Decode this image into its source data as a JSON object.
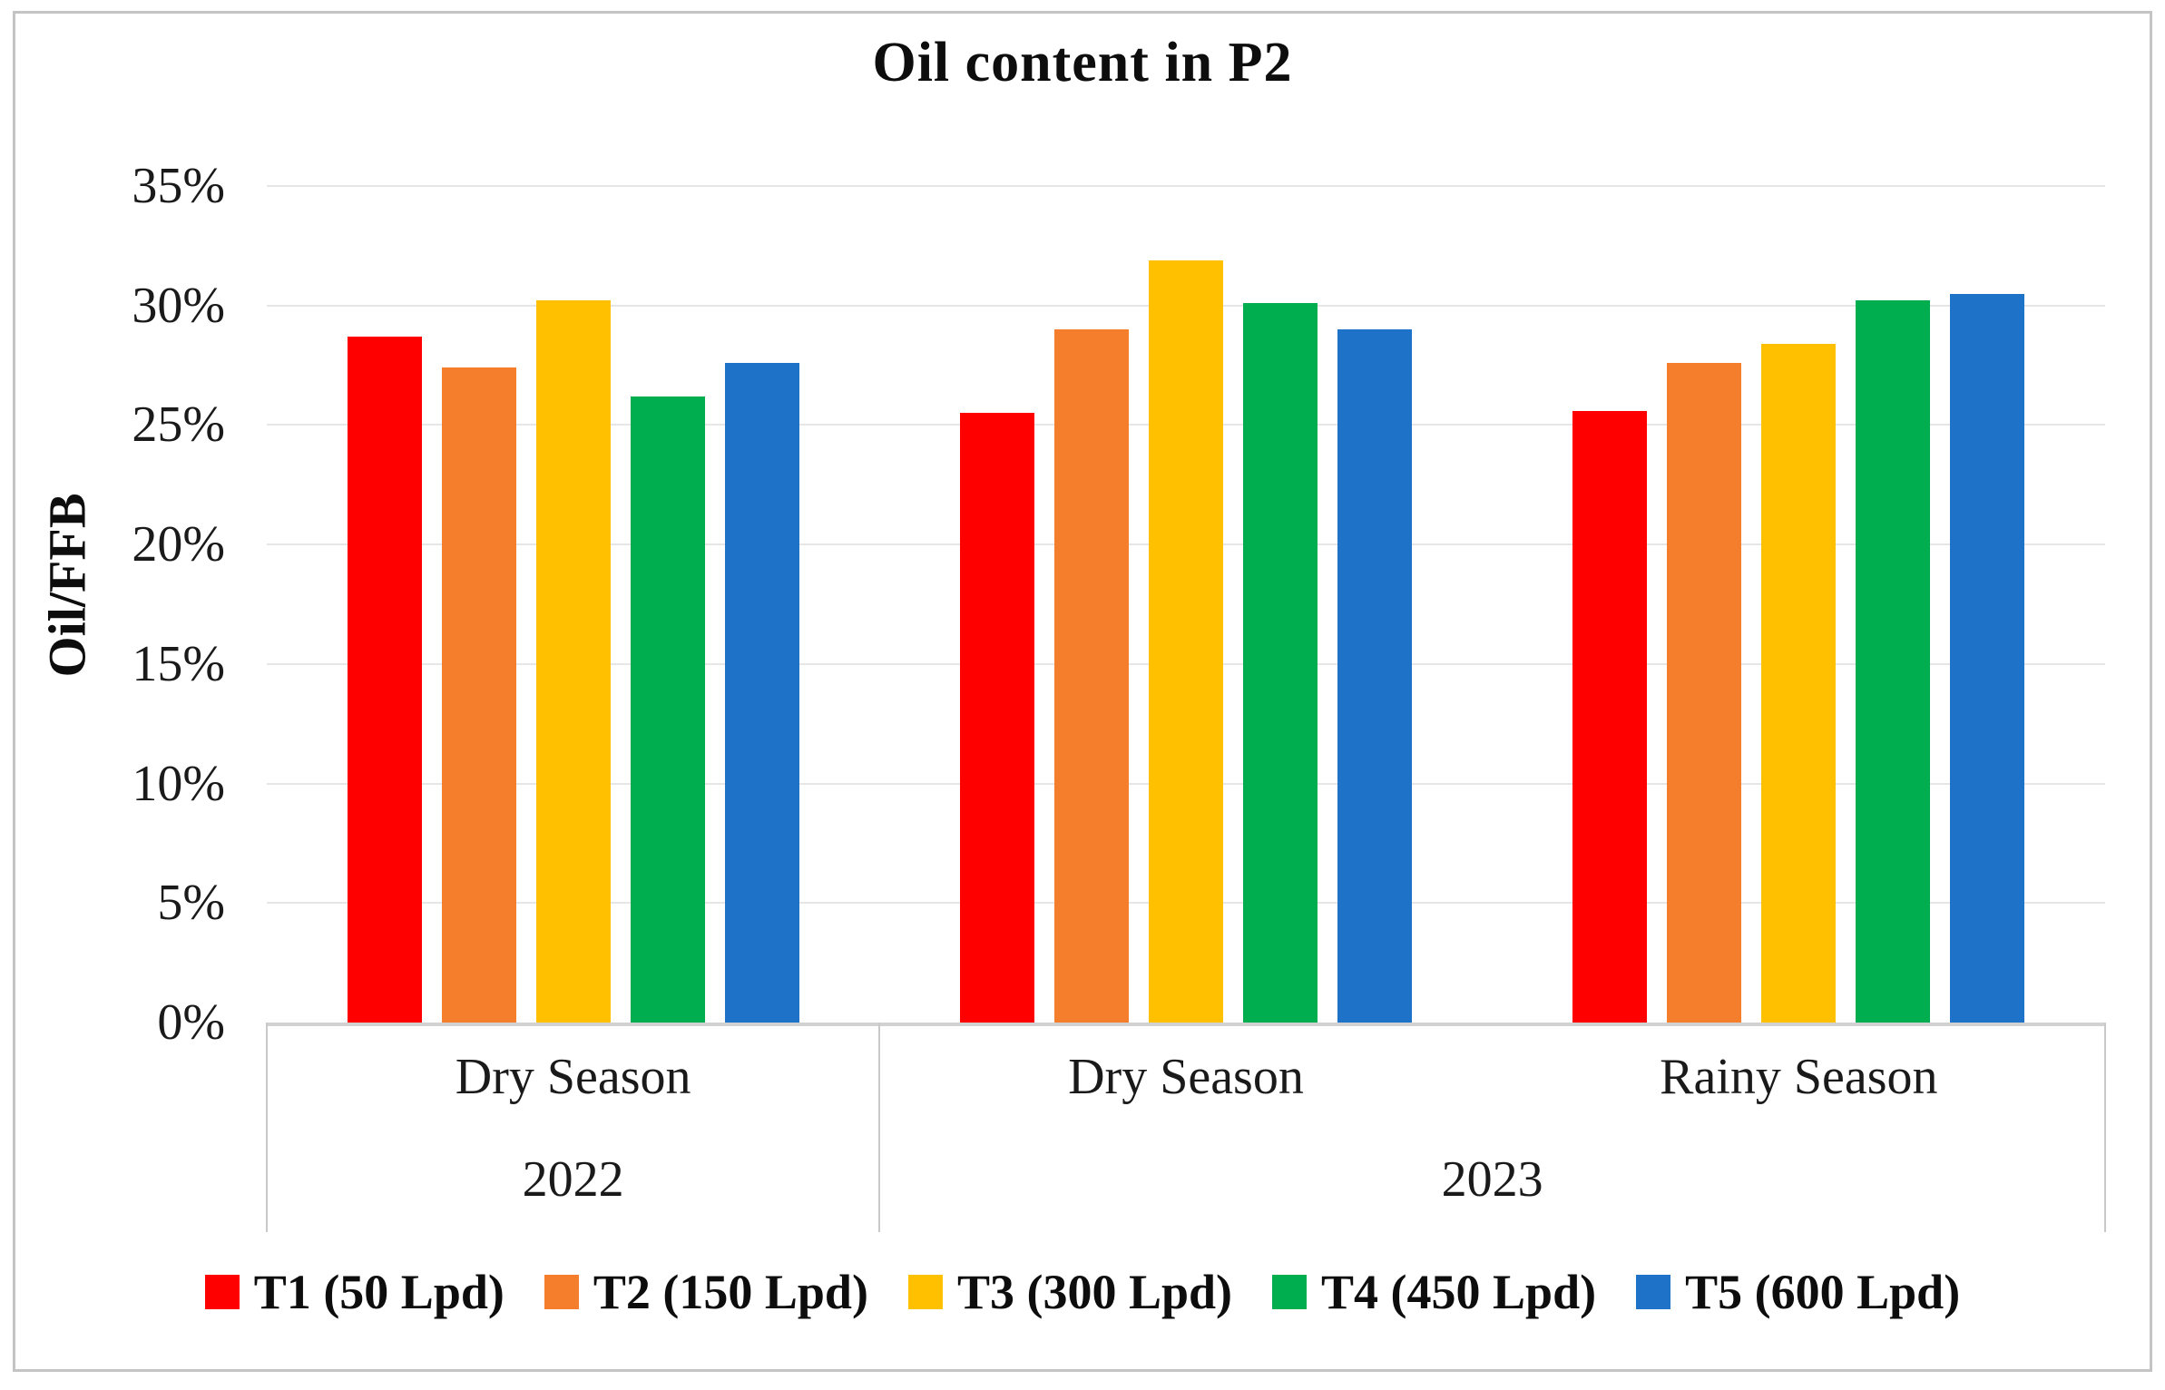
{
  "figure": {
    "title": "Oil content in P2",
    "y_axis_title": "Oil/FFB"
  },
  "chart_data": {
    "type": "bar",
    "title": "Oil content in P2",
    "xlabel": "",
    "ylabel": "Oil/FFB",
    "ylim": [
      0,
      35
    ],
    "ytick_step": 5,
    "yticks": [
      "35%",
      "30%",
      "25%",
      "20%",
      "15%",
      "10%",
      "5%",
      "0%"
    ],
    "grid": true,
    "legend_position": "bottom",
    "categories": [
      {
        "season": "Dry Season",
        "year": "2022"
      },
      {
        "season": "Dry Season",
        "year": "2023"
      },
      {
        "season": "Rainy Season",
        "year": "2023"
      }
    ],
    "year_spans": [
      {
        "label": "2022",
        "span": 1
      },
      {
        "label": "2023",
        "span": 2
      }
    ],
    "series": [
      {
        "name": "T1 (50 Lpd)",
        "color": "#fe0000",
        "values": [
          28.7,
          25.5,
          25.6
        ]
      },
      {
        "name": "T2 (150 Lpd)",
        "color": "#f57e2c",
        "values": [
          27.4,
          29.0,
          27.6
        ]
      },
      {
        "name": "T3 (300 Lpd)",
        "color": "#ffc000",
        "values": [
          30.2,
          31.9,
          28.4
        ]
      },
      {
        "name": "T4 (450 Lpd)",
        "color": "#00ad4f",
        "values": [
          26.2,
          30.1,
          30.2
        ]
      },
      {
        "name": "T5 (600 Lpd)",
        "color": "#1e73c8",
        "values": [
          27.6,
          29.0,
          30.5
        ]
      }
    ],
    "colors": {
      "gridline": "#e6e6e6",
      "axis_line": "#d2d2d2",
      "separator": "#c9c9c9",
      "frame": "#c4c4c4"
    }
  }
}
